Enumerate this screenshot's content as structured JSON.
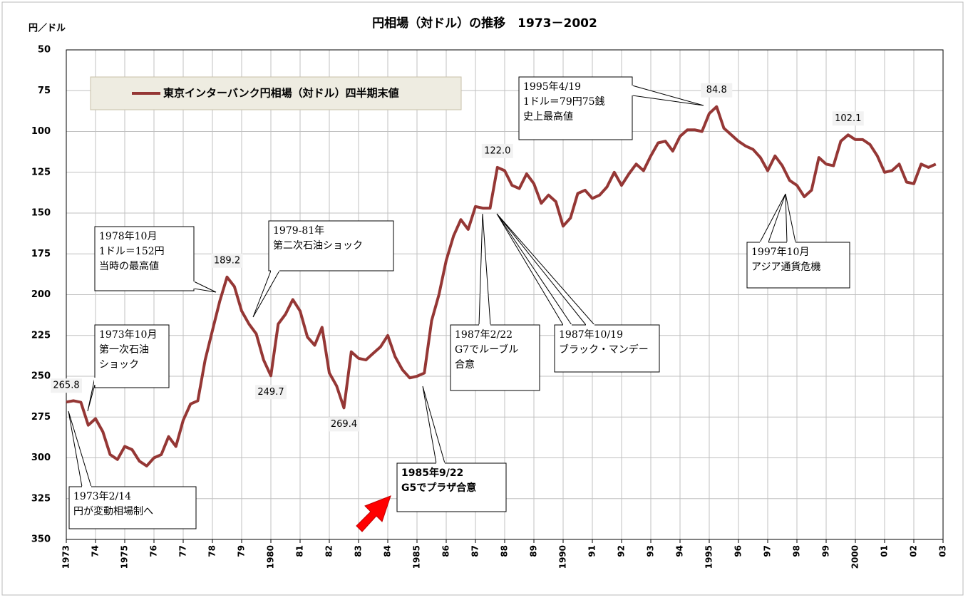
{
  "chart_data": {
    "type": "line",
    "title": "円相場（対ドル）の推移　1973－2002",
    "y_axis_label": "円／ドル",
    "x": [
      1973,
      1973.25,
      1973.5,
      1973.75,
      1974,
      1974.25,
      1974.5,
      1974.75,
      1975,
      1975.25,
      1975.5,
      1975.75,
      1976,
      1976.25,
      1976.5,
      1976.75,
      1977,
      1977.25,
      1977.5,
      1977.75,
      1978,
      1978.25,
      1978.5,
      1978.75,
      1979,
      1979.25,
      1979.5,
      1979.75,
      1980,
      1980.25,
      1980.5,
      1980.75,
      1981,
      1981.25,
      1981.5,
      1981.75,
      1982,
      1982.25,
      1982.5,
      1982.75,
      1983,
      1983.25,
      1983.5,
      1983.75,
      1984,
      1984.25,
      1984.5,
      1984.75,
      1985,
      1985.25,
      1985.5,
      1985.75,
      1986,
      1986.25,
      1986.5,
      1986.75,
      1987,
      1987.25,
      1987.5,
      1987.75,
      1988,
      1988.25,
      1988.5,
      1988.75,
      1989,
      1989.25,
      1989.5,
      1989.75,
      1990,
      1990.25,
      1990.5,
      1990.75,
      1991,
      1991.25,
      1991.5,
      1991.75,
      1992,
      1992.25,
      1992.5,
      1992.75,
      1993,
      1993.25,
      1993.5,
      1993.75,
      1994,
      1994.25,
      1994.5,
      1994.75,
      1995,
      1995.25,
      1995.5,
      1995.75,
      1996,
      1996.25,
      1996.5,
      1996.75,
      1997,
      1997.25,
      1997.5,
      1997.75,
      1998,
      1998.25,
      1998.5,
      1998.75,
      1999,
      1999.25,
      1999.5,
      1999.75,
      2000,
      2000.25,
      2000.5,
      2000.75,
      2001,
      2001.25,
      2001.5,
      2001.75,
      2002,
      2002.25,
      2002.5,
      2002.75
    ],
    "series": [
      {
        "name": "東京インターバンク円相場（対ドル）四半期末値",
        "color": "#953735",
        "values": [
          265.8,
          265,
          266,
          280,
          276,
          284,
          298,
          301,
          293,
          295,
          302,
          305,
          300,
          298,
          287,
          293,
          277,
          267,
          265,
          240,
          222,
          204,
          189.2,
          195,
          210,
          218,
          224,
          240,
          249.7,
          218,
          212,
          203,
          210,
          226,
          231,
          220,
          248,
          256,
          269.4,
          235,
          239,
          240,
          236,
          232,
          225,
          238,
          246,
          251,
          250,
          248,
          216,
          200,
          179,
          164,
          154,
          160,
          146,
          147,
          147,
          122.0,
          124,
          133,
          135,
          126,
          132,
          144,
          139,
          143,
          158,
          153,
          138,
          136,
          141,
          139,
          134,
          125,
          133,
          126,
          120,
          124,
          115,
          107,
          106,
          112,
          103,
          99,
          99,
          100,
          89,
          84.8,
          98,
          102,
          106,
          109,
          111,
          116,
          124,
          115,
          121,
          130,
          133,
          140,
          136,
          116,
          120,
          121,
          106,
          102.1,
          105,
          105,
          108,
          115,
          125,
          124,
          120,
          131,
          132,
          120,
          122,
          120
        ]
      }
    ],
    "point_labels": [
      {
        "x": 1973,
        "label": "265.8"
      },
      {
        "x": 1978.5,
        "label": "189.2"
      },
      {
        "x": 1980,
        "label": "249.7"
      },
      {
        "x": 1982.5,
        "label": "269.4"
      },
      {
        "x": 1987.75,
        "label": "122.0"
      },
      {
        "x": 1995.25,
        "label": "84.8"
      },
      {
        "x": 1999.75,
        "label": "102.1"
      }
    ],
    "xlim": [
      1973,
      2003
    ],
    "xticks": [
      {
        "value": 1973,
        "label": "1973"
      },
      {
        "value": 1974,
        "label": "74"
      },
      {
        "value": 1975,
        "label": "1975"
      },
      {
        "value": 1976,
        "label": "76"
      },
      {
        "value": 1977,
        "label": "77"
      },
      {
        "value": 1978,
        "label": "78"
      },
      {
        "value": 1979,
        "label": "79"
      },
      {
        "value": 1980,
        "label": "1980"
      },
      {
        "value": 1981,
        "label": "81"
      },
      {
        "value": 1982,
        "label": "82"
      },
      {
        "value": 1983,
        "label": "83"
      },
      {
        "value": 1984,
        "label": "84"
      },
      {
        "value": 1985,
        "label": "1985"
      },
      {
        "value": 1986,
        "label": "86"
      },
      {
        "value": 1987,
        "label": "87"
      },
      {
        "value": 1988,
        "label": "88"
      },
      {
        "value": 1989,
        "label": "89"
      },
      {
        "value": 1990,
        "label": "1990"
      },
      {
        "value": 1991,
        "label": "91"
      },
      {
        "value": 1992,
        "label": "92"
      },
      {
        "value": 1993,
        "label": "93"
      },
      {
        "value": 1994,
        "label": "94"
      },
      {
        "value": 1995,
        "label": "1995"
      },
      {
        "value": 1996,
        "label": "96"
      },
      {
        "value": 1997,
        "label": "97"
      },
      {
        "value": 1998,
        "label": "98"
      },
      {
        "value": 1999,
        "label": "99"
      },
      {
        "value": 2000,
        "label": "2000"
      },
      {
        "value": 2001,
        "label": "01"
      },
      {
        "value": 2002,
        "label": "02"
      },
      {
        "value": 2003,
        "label": "03"
      }
    ],
    "ylim": [
      50,
      350
    ],
    "y_inverted": true,
    "yticks": [
      50,
      75,
      100,
      125,
      150,
      175,
      200,
      225,
      250,
      275,
      300,
      325,
      350
    ],
    "grid": true,
    "annotations": [
      {
        "lines": [
          "1978年10月",
          "1ドル＝152円",
          "当時の最高値"
        ]
      },
      {
        "lines": [
          "1979-81年",
          "第二次石油ショック"
        ]
      },
      {
        "lines": [
          "1973年10月",
          "第一次石油",
          "ショック"
        ]
      },
      {
        "lines": [
          "1973年2/14",
          "円が変動相場制へ"
        ]
      },
      {
        "lines": [
          "1985年9/22",
          "G5でプラザ合意"
        ]
      },
      {
        "lines": [
          "1987年2/22",
          "G7でルーブル",
          "合意"
        ]
      },
      {
        "lines": [
          "1987年10/19",
          "ブラック・マンデー"
        ]
      },
      {
        "lines": [
          "1995年4/19",
          "1ドル＝79円75銭",
          "史上最高値"
        ]
      },
      {
        "lines": [
          "1997年10月",
          "アジア通貨危機"
        ]
      }
    ]
  }
}
